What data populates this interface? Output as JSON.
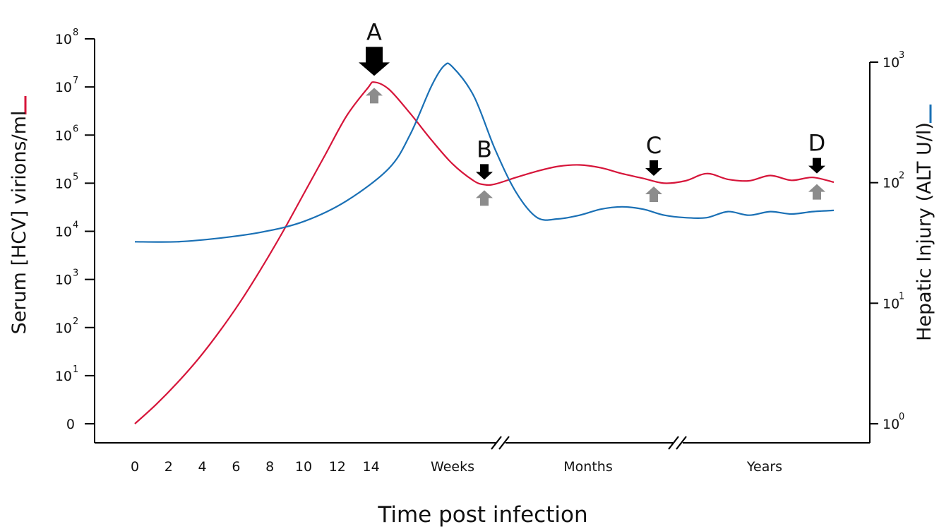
{
  "chart_data": {
    "type": "line",
    "xlabel": "Time post infection",
    "ylabel_left": "Serum [HCV]  virions/ml",
    "ylabel_right": "Hepatic Injury (ALT U/l)",
    "x_ticks": [
      "0",
      "2",
      "4",
      "6",
      "8",
      "10",
      "12",
      "14"
    ],
    "x_unit_label": "Weeks",
    "x_periods": [
      "Months",
      "Years"
    ],
    "left_axis": {
      "scale": "log",
      "ticks": [
        {
          "base": "0",
          "exp": ""
        },
        {
          "base": "10",
          "exp": "1"
        },
        {
          "base": "10",
          "exp": "2"
        },
        {
          "base": "10",
          "exp": "3"
        },
        {
          "base": "10",
          "exp": "4"
        },
        {
          "base": "10",
          "exp": "5"
        },
        {
          "base": "10",
          "exp": "6"
        },
        {
          "base": "10",
          "exp": "7"
        },
        {
          "base": "10",
          "exp": "8"
        }
      ]
    },
    "right_axis": {
      "scale": "log",
      "ticks": [
        {
          "base": "10",
          "exp": "0"
        },
        {
          "base": "10",
          "exp": "1"
        },
        {
          "base": "10",
          "exp": "2"
        },
        {
          "base": "10",
          "exp": "3"
        }
      ]
    },
    "series": [
      {
        "color": "#d6153a",
        "axis": "left",
        "points": [
          [
            0,
            0
          ],
          [
            1,
            0.4
          ],
          [
            2,
            0.85
          ],
          [
            3,
            1.35
          ],
          [
            4,
            1.92
          ],
          [
            5,
            2.55
          ],
          [
            6,
            3.25
          ],
          [
            7,
            4.0
          ],
          [
            8,
            4.8
          ],
          [
            9,
            5.6
          ],
          [
            10,
            6.4
          ],
          [
            11,
            6.98
          ],
          [
            11.3,
            7.1
          ],
          [
            12,
            6.95
          ],
          [
            13,
            6.45
          ],
          [
            14,
            5.9
          ],
          [
            15,
            5.4
          ],
          [
            16,
            5.05
          ],
          [
            16.5,
            4.97
          ],
          [
            17,
            4.98
          ],
          [
            18,
            5.12
          ],
          [
            19,
            5.25
          ],
          [
            20,
            5.35
          ],
          [
            21,
            5.38
          ],
          [
            22,
            5.32
          ],
          [
            23,
            5.2
          ],
          [
            24,
            5.1
          ],
          [
            25,
            5.0
          ],
          [
            26,
            5.05
          ],
          [
            27,
            5.2
          ],
          [
            28,
            5.08
          ],
          [
            29,
            5.05
          ],
          [
            30,
            5.16
          ],
          [
            31,
            5.06
          ],
          [
            32,
            5.12
          ],
          [
            33,
            5.02
          ]
        ]
      },
      {
        "color": "#1a70b5",
        "axis": "right",
        "points": [
          [
            0,
            1.51
          ],
          [
            2,
            1.51
          ],
          [
            4,
            1.54
          ],
          [
            6,
            1.59
          ],
          [
            8,
            1.68
          ],
          [
            10,
            1.85
          ],
          [
            12,
            2.12
          ],
          [
            13,
            2.4
          ],
          [
            14,
            2.8
          ],
          [
            14.6,
            2.97
          ],
          [
            15,
            2.96
          ],
          [
            16,
            2.72
          ],
          [
            17,
            2.28
          ],
          [
            18,
            1.92
          ],
          [
            19,
            1.71
          ],
          [
            20,
            1.7
          ],
          [
            21,
            1.73
          ],
          [
            22,
            1.78
          ],
          [
            23,
            1.8
          ],
          [
            24,
            1.78
          ],
          [
            25,
            1.73
          ],
          [
            26,
            1.71
          ],
          [
            27,
            1.71
          ],
          [
            28,
            1.76
          ],
          [
            29,
            1.73
          ],
          [
            30,
            1.76
          ],
          [
            31,
            1.74
          ],
          [
            32,
            1.76
          ],
          [
            33,
            1.77
          ]
        ]
      }
    ],
    "markers": [
      {
        "label": "A",
        "x": 11.3,
        "big": true
      },
      {
        "label": "B",
        "x": 16.5,
        "big": false
      },
      {
        "label": "C",
        "x": 24.5,
        "big": false
      },
      {
        "label": "D",
        "x": 32.2,
        "big": false
      }
    ],
    "arrow_colors": {
      "down": "#000000",
      "up": "#8c8c8c"
    }
  }
}
